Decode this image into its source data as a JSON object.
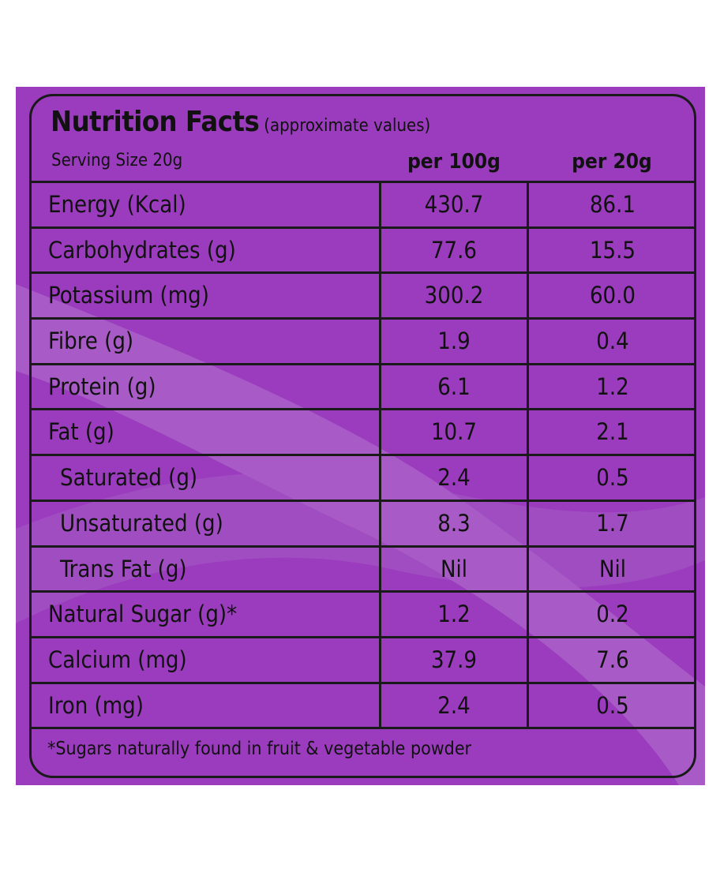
{
  "label": {
    "title": "Nutrition Facts",
    "title_note": "(approximate values)",
    "serving_size": "Serving Size  20g",
    "col_per100": "per 100g",
    "col_per20": "per 20g",
    "rows": [
      {
        "name": "Energy (Kcal)",
        "per100": "430.7",
        "per20": "86.1"
      },
      {
        "name": "Carbohydrates (g)",
        "per100": "77.6",
        "per20": "15.5"
      },
      {
        "name": "Potassium (mg)",
        "per100": "300.2",
        "per20": "60.0"
      },
      {
        "name": "Fibre (g)",
        "per100": "1.9",
        "per20": "0.4"
      },
      {
        "name": "Protein (g)",
        "per100": "6.1",
        "per20": "1.2"
      },
      {
        "name": "Fat (g)",
        "per100": "10.7",
        "per20": "2.1"
      },
      {
        "name": "Saturated (g)",
        "per100": "2.4",
        "per20": "0.5"
      },
      {
        "name": "Unsaturated (g)",
        "per100": "8.3",
        "per20": "1.7"
      },
      {
        "name": "Trans Fat (g)",
        "per100": "Nil",
        "per20": "Nil"
      },
      {
        "name": "Natural Sugar (g)*",
        "per100": "1.2",
        "per20": "0.2"
      },
      {
        "name": "Calcium (mg)",
        "per100": "37.9",
        "per20": "7.6"
      },
      {
        "name": "Iron (mg)",
        "per100": "2.4",
        "per20": "0.5"
      }
    ],
    "footnote": "*Sugars naturally found in fruit & vegetable powder"
  },
  "colors": {
    "background": "#9a3cbd",
    "swoosh": "#a95bc8",
    "ink": "#1a1a1a"
  }
}
